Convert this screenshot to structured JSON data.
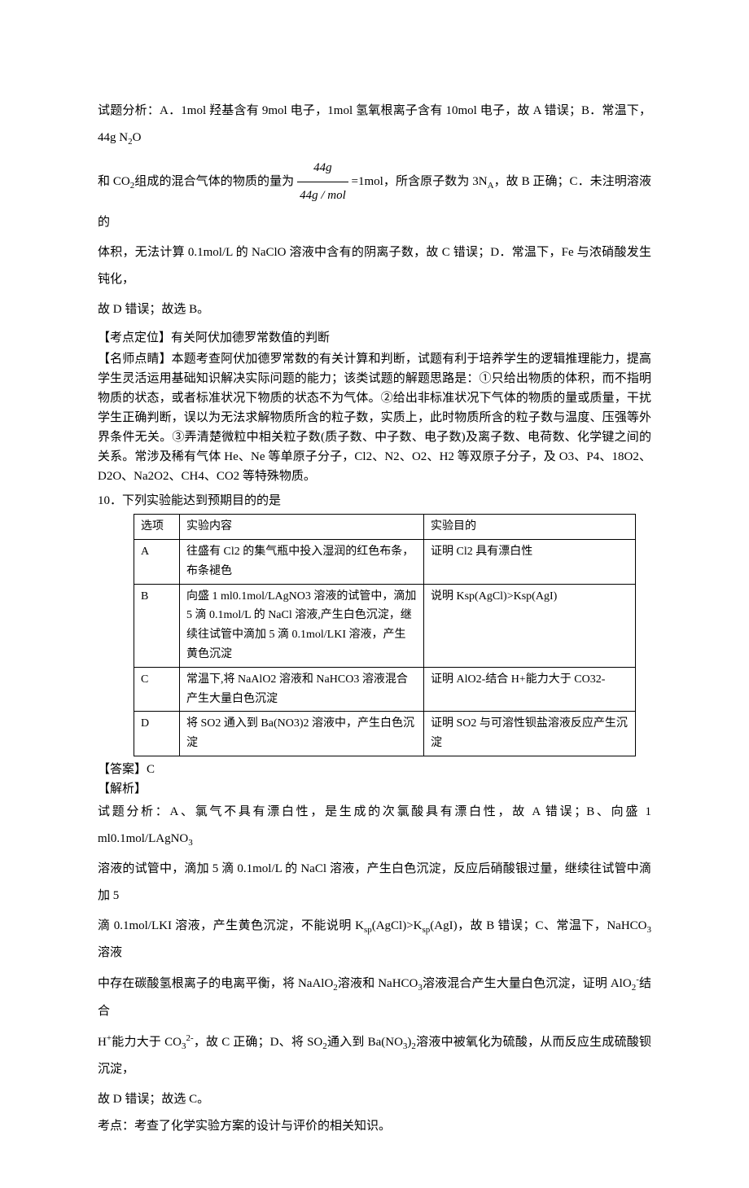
{
  "analysis1": {
    "line1_prefix": "试题分析：A．1mol 羟基含有 9mol 电子，1mol 氢氧根离子含有 10mol 电子，故 A 错误；B．常温下，44g N",
    "line1_sub": "2",
    "line1_suffix": "O",
    "line2_prefix": "和 CO",
    "line2_sub1": "2",
    "line2_mid1": "组成的混合气体的物质的量为 ",
    "frac_num": "44g",
    "frac_den": "44g / mol",
    "line2_mid2": " =1mol，所含原子数为 3N",
    "line2_subA": "A",
    "line2_suffix": "，故 B 正确；C．未注明溶液的",
    "line3": "体积，无法计算 0.1mol/L 的 NaClO 溶液中含有的阴离子数，故 C 错误；D．常温下，Fe 与浓硝酸发生钝化，",
    "line4": "故 D 错误；故选 B。"
  },
  "kaodian": {
    "label": "【考点定位】有关阿伏加德罗常数值的判断"
  },
  "mingshi": {
    "p1": "【名师点睛】本题考查阿伏加德罗常数的有关计算和判断，试题有利于培养学生的逻辑推理能力，提高学生灵活运用基础知识解决实际问题的能力；该类试题的解题思路是：①只给出物质的体积，而不指明物质的状态，或者标准状况下物质的状态不为气体。②给出非标准状况下气体的物质的量或质量，干扰学生正确判断，误以为无法求解物质所含的粒子数，实质上，此时物质所含的粒子数与温度、压强等外界条件无关。③弄清楚微粒中相关粒子数(质子数、中子数、电子数)及离子数、电荷数、化学键之间的关系。常涉及稀有气体 He、Ne 等单原子分子，Cl2、N2、O2、H2 等双原子分子，及 O3、P4、18O2、D2O、Na2O2、CH4、CO2 等特殊物质。"
  },
  "q10": {
    "stem": "10．下列实验能达到预期目的的是",
    "header": {
      "opt": "选项",
      "content": "实验内容",
      "purpose": "实验目的"
    },
    "rows": [
      {
        "opt": "A",
        "content": "往盛有 Cl2 的集气瓶中投入湿润的红色布条，布条褪色",
        "purpose": "证明 Cl2 具有漂白性"
      },
      {
        "opt": "B",
        "content": "向盛 1 ml0.1mol/LAgNO3 溶液的试管中，滴加 5 滴 0.1mol/L 的 NaCl 溶液,产生白色沉淀，继续往试管中滴加 5 滴 0.1mol/LKI 溶液，产生黄色沉淀",
        "purpose": "说明 Ksp(AgCl)>Ksp(AgI)"
      },
      {
        "opt": "C",
        "content": "常温下,将 NaAlO2 溶液和 NaHCO3 溶液混合产生大量白色沉淀",
        "purpose": "证明 AlO2-结合 H+能力大于 CO32-"
      },
      {
        "opt": "D",
        "content": "将 SO2 通入到 Ba(NO3)2 溶液中，产生白色沉淀",
        "purpose": "证明 SO2 与可溶性钡盐溶液反应产生沉淀"
      }
    ]
  },
  "answer": {
    "ans": "【答案】C",
    "jiexi": "【解析】"
  },
  "analysis2": {
    "p1_a": "试题分析：A、氯气不具有漂白性，是生成的次氯酸具有漂白性，故 A 错误；B、向盛 1 ml0.1mol/LAgNO",
    "p1_sub1": "3",
    "p2": "溶液的试管中，滴加 5 滴 0.1mol/L 的 NaCl 溶液，产生白色沉淀，反应后硝酸银过量，继续往试管中滴加 5",
    "p3_a": "滴 0.1mol/LKI 溶液，产生黄色沉淀，不能说明 K",
    "p3_sp1": "sp",
    "p3_b": "(AgCl)>K",
    "p3_sp2": "sp",
    "p3_c": "(AgI)，故 B 错误；C、常温下，NaHCO",
    "p3_sub3": "3",
    "p3_d": "溶液",
    "p4_a": "中存在碳酸氢根离子的电离平衡，将 NaAlO",
    "p4_sub1": "2",
    "p4_b": "溶液和 NaHCO",
    "p4_sub2": "3",
    "p4_c": "溶液混合产生大量白色沉淀，证明 AlO",
    "p4_sub3": "2",
    "p4_sup": "-",
    "p4_d": "结合",
    "p5_a": "H",
    "p5_sup1": "+",
    "p5_b": "能力大于 CO",
    "p5_sub1": "3",
    "p5_sup2": "2-",
    "p5_c": "，故 C 正确；D、将 SO",
    "p5_sub2": "2",
    "p5_d": "通入到 Ba(NO",
    "p5_sub3": "3",
    "p5_e": ")",
    "p5_sub4": "2",
    "p5_f": "溶液中被氧化为硫酸，从而反应生成硫酸钡沉淀，",
    "p6": "故 D 错误；故选 C。"
  },
  "kaodian2": "考点：考查了化学实验方案的设计与评价的相关知识。"
}
